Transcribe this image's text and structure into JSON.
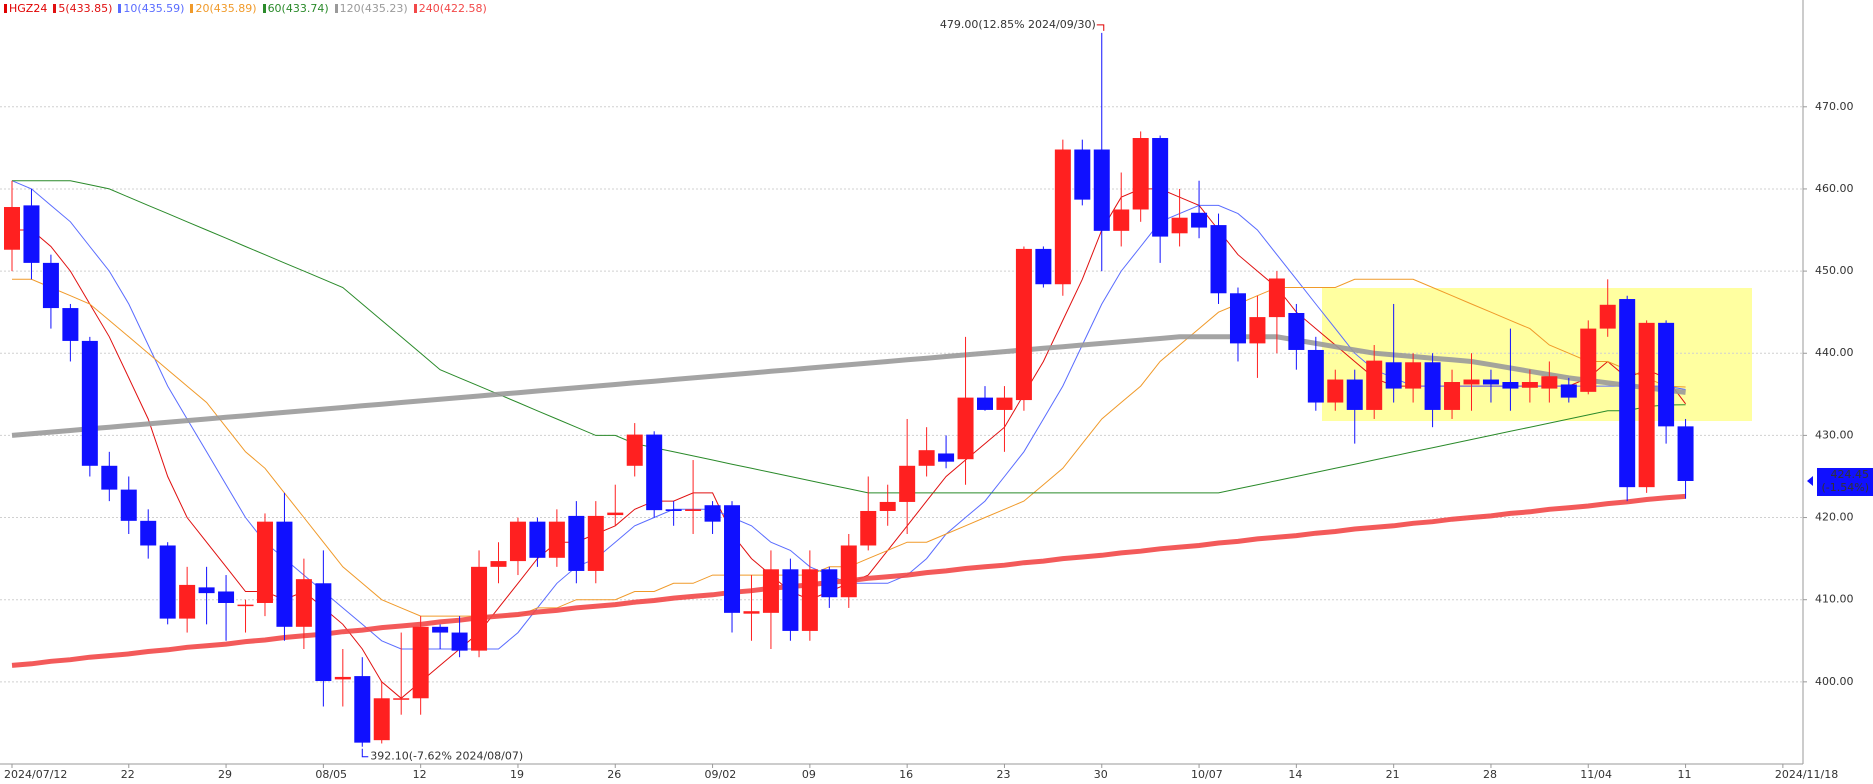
{
  "chart_data": {
    "type": "candlestick",
    "title": "HGZ24",
    "title_color": "#e00000",
    "up_color": "#ff2020",
    "down_color": "#1010ff",
    "grid": true,
    "ylim": [
      390,
      483
    ],
    "yticks": [
      {
        "value": 400,
        "label": "400.00"
      },
      {
        "value": 410,
        "label": "410.00"
      },
      {
        "value": 420,
        "label": "420.00"
      },
      {
        "value": 430,
        "label": "430.00"
      },
      {
        "value": 440,
        "label": "440.00"
      },
      {
        "value": 450,
        "label": "450.00"
      },
      {
        "value": 460,
        "label": "460.00"
      },
      {
        "value": 470,
        "label": "470.00"
      }
    ],
    "categories": [
      "2024/07/12",
      null,
      null,
      null,
      null,
      null,
      "22",
      null,
      null,
      null,
      null,
      "29",
      null,
      null,
      null,
      null,
      "08/05",
      null,
      null,
      null,
      null,
      "12",
      null,
      null,
      null,
      null,
      "19",
      null,
      null,
      null,
      null,
      "26",
      null,
      null,
      null,
      null,
      "09/02",
      null,
      null,
      null,
      null,
      "09",
      null,
      null,
      null,
      null,
      "16",
      null,
      null,
      null,
      null,
      "23",
      null,
      null,
      null,
      null,
      "30",
      null,
      null,
      null,
      null,
      "10/07",
      null,
      null,
      null,
      null,
      "14",
      null,
      null,
      null,
      null,
      "21",
      null,
      null,
      null,
      null,
      "28",
      null,
      null,
      null,
      null,
      "11/04",
      null,
      null,
      null,
      null,
      "11",
      null,
      null,
      null,
      null,
      "2024/11/18"
    ],
    "open": [
      452.6,
      458,
      451,
      445.5,
      441.5,
      426.3,
      423.4,
      419.6,
      416.6,
      407.7,
      411.5,
      411,
      409.4,
      409.6,
      419.5,
      406.7,
      412,
      400.3,
      400.7,
      392.9,
      398,
      398,
      406.7,
      406,
      403.8,
      414,
      414.7,
      419.5,
      415.1,
      420.2,
      413.5,
      420.3,
      426.3,
      430.1,
      421,
      420.8,
      421.5,
      421.5,
      408.3,
      408.4,
      413.7,
      406.2,
      413.7,
      410.3,
      416.6,
      420.8,
      421.9,
      426.3,
      427.8,
      427.1,
      434.6,
      433.1,
      434.3,
      452.7,
      448.4,
      464.8,
      464.8,
      454.9,
      457.5,
      466.2,
      454.6,
      457.1,
      455.6,
      447.3,
      441.2,
      444.4,
      444.9,
      440.4,
      434,
      436.8,
      433.1,
      438.9,
      435.7,
      438.9,
      433.1,
      436.2,
      436.8,
      436.5,
      435.8,
      435.7,
      436.2,
      435.3,
      443,
      446.6,
      423.7,
      443.7,
      431.1,
      null,
      null,
      null,
      null,
      null
    ],
    "high": [
      461,
      460,
      452,
      446,
      442,
      428,
      425,
      421,
      417,
      414,
      414,
      413,
      410,
      420.5,
      423,
      415,
      416,
      404,
      403,
      400,
      406,
      408,
      407,
      408,
      416,
      417,
      420,
      420,
      421,
      422,
      422,
      424,
      431.5,
      430.5,
      422,
      427,
      422,
      422,
      413,
      416,
      415,
      416,
      414,
      418,
      425,
      424,
      432,
      431,
      430,
      442,
      436,
      436,
      453,
      453,
      466,
      466,
      479,
      462,
      467,
      466.5,
      460,
      461,
      457,
      448,
      447,
      450,
      446,
      442,
      438,
      438,
      441,
      446,
      440,
      440,
      438,
      440,
      438,
      443,
      438,
      439,
      437,
      444,
      449,
      447,
      444,
      444,
      432,
      null,
      null,
      null,
      null,
      null
    ],
    "low": [
      450,
      449,
      443,
      439,
      425,
      422,
      418,
      415,
      407,
      406,
      407,
      405,
      406,
      408,
      405,
      404,
      397,
      397,
      392.1,
      392.5,
      396,
      396,
      404,
      403,
      403,
      412,
      413,
      414,
      414,
      412,
      412,
      419,
      425,
      420,
      419,
      418,
      418,
      406,
      405,
      404,
      405,
      405,
      409,
      409,
      416,
      419,
      418,
      425,
      426,
      424,
      433,
      428,
      433,
      448,
      447,
      458,
      450,
      453,
      456,
      451,
      453,
      454,
      446,
      439,
      437,
      440,
      438,
      433,
      433,
      429,
      432,
      434,
      434,
      431,
      432,
      433,
      434,
      433,
      434,
      434,
      434,
      435,
      442,
      422,
      423,
      429,
      422.3,
      null,
      null,
      null,
      null,
      null
    ],
    "close": [
      457.8,
      451,
      445.5,
      441.5,
      426.3,
      423.4,
      419.6,
      416.6,
      407.7,
      411.8,
      410.8,
      409.6,
      409.4,
      419.5,
      406.7,
      412.5,
      400.1,
      400.6,
      392.6,
      398,
      398,
      406.7,
      406,
      403.8,
      414,
      414.7,
      419.5,
      415.1,
      419.5,
      413.5,
      420.2,
      420.6,
      430.1,
      420.9,
      420.8,
      421,
      419.5,
      408.4,
      408.6,
      413.7,
      406.2,
      413.7,
      410.3,
      416.6,
      420.8,
      421.9,
      426.3,
      428.2,
      426.8,
      434.6,
      433.1,
      434.6,
      452.7,
      448.4,
      464.8,
      458.7,
      454.9,
      457.5,
      466.2,
      454.2,
      456.5,
      455.3,
      447.3,
      441.2,
      444.4,
      449.1,
      440.4,
      434,
      436.8,
      433.1,
      439.1,
      435.7,
      438.9,
      433.1,
      436.5,
      436.8,
      436.2,
      435.7,
      436.5,
      437.2,
      434.6,
      443,
      445.9,
      423.7,
      443.7,
      431.1,
      424.45,
      null,
      null,
      null,
      null,
      null
    ],
    "series": [
      {
        "name": "5(433.85)",
        "color": "#e01010",
        "width": 1,
        "values": [
          455,
          455,
          453,
          450,
          446,
          442,
          437,
          432,
          425,
          420,
          417,
          414,
          411,
          411,
          410,
          411,
          409,
          407,
          404,
          400,
          398,
          400,
          402,
          404,
          406,
          409,
          412,
          415,
          417,
          417,
          418,
          419,
          421,
          422,
          422,
          423,
          423,
          418,
          415,
          413,
          411,
          410,
          411,
          412,
          413,
          416,
          419,
          422,
          425,
          427,
          429,
          431,
          435,
          439,
          444,
          449,
          455,
          459,
          460,
          460,
          459,
          458,
          455,
          452,
          450,
          448,
          445,
          443,
          441,
          439,
          437,
          436,
          436,
          436,
          436,
          436,
          436,
          436,
          436,
          436,
          436,
          437,
          439,
          437,
          438,
          437,
          433.85,
          null,
          null,
          null,
          null,
          null
        ]
      },
      {
        "name": "10(435.59)",
        "color": "#5a6cff",
        "width": 1,
        "values": [
          461,
          460,
          458,
          456,
          453,
          450,
          446,
          441,
          436,
          432,
          428,
          424,
          420,
          417,
          415,
          413,
          411,
          409,
          407,
          405,
          404,
          404,
          404,
          404,
          404,
          404,
          406,
          409,
          412,
          414,
          415,
          417,
          419,
          420,
          421,
          421,
          421,
          420,
          419,
          417,
          416,
          414,
          413,
          412,
          412,
          412,
          413,
          415,
          418,
          420,
          422,
          425,
          428,
          432,
          436,
          441,
          446,
          450,
          453,
          456,
          457,
          458,
          458,
          457,
          455,
          452,
          449,
          446,
          443,
          440,
          438,
          437,
          436,
          436,
          436,
          436,
          436,
          436,
          436,
          436,
          436,
          436,
          436,
          436,
          436,
          436,
          435.59,
          null,
          null,
          null,
          null,
          null
        ]
      },
      {
        "name": "20(435.89)",
        "color": "#f09a2a",
        "width": 1,
        "values": [
          449,
          449,
          448,
          447,
          446,
          444,
          442,
          440,
          438,
          436,
          434,
          431,
          428,
          426,
          423,
          420,
          417,
          414,
          412,
          410,
          409,
          408,
          408,
          408,
          408,
          408,
          408,
          409,
          409,
          410,
          410,
          410,
          411,
          411,
          412,
          412,
          413,
          413,
          413,
          413,
          413,
          413,
          414,
          414,
          415,
          416,
          417,
          417,
          418,
          419,
          420,
          421,
          422,
          424,
          426,
          429,
          432,
          434,
          436,
          439,
          441,
          443,
          445,
          446,
          447,
          448,
          448,
          448,
          448,
          449,
          449,
          449,
          449,
          448,
          447,
          446,
          445,
          444,
          443,
          441,
          440,
          439,
          439,
          438,
          437,
          436,
          435.89,
          null,
          null,
          null,
          null,
          null
        ]
      },
      {
        "name": "60(433.74)",
        "color": "#2a8a2a",
        "width": 1,
        "values": [
          461,
          461,
          461,
          461,
          460.5,
          460,
          459,
          458,
          457,
          456,
          455,
          454,
          453,
          452,
          451,
          450,
          449,
          448,
          446,
          444,
          442,
          440,
          438,
          437,
          436,
          435,
          434,
          433,
          432,
          431,
          430,
          430,
          429,
          428.5,
          428,
          427.5,
          427,
          426.5,
          426,
          425.5,
          425,
          424.5,
          424,
          423.5,
          423,
          423,
          423,
          423,
          423,
          423,
          423,
          423,
          423,
          423,
          423,
          423,
          423,
          423,
          423,
          423,
          423,
          423,
          423,
          423.5,
          424,
          424.5,
          425,
          425.5,
          426,
          426.5,
          427,
          427.5,
          428,
          428.5,
          429,
          429.5,
          430,
          430.5,
          431,
          431.5,
          432,
          432.5,
          433,
          433,
          433.5,
          433.7,
          433.74,
          null,
          null,
          null,
          null,
          null
        ]
      },
      {
        "name": "120(435.23)",
        "color": "#9a9a9a",
        "width": 5,
        "values": [
          430.0,
          430.2,
          430.4,
          430.6,
          430.8,
          431.0,
          431.2,
          431.4,
          431.6,
          431.8,
          432.0,
          432.2,
          432.4,
          432.6,
          432.8,
          433.0,
          433.2,
          433.4,
          433.6,
          433.8,
          434.0,
          434.2,
          434.4,
          434.6,
          434.8,
          435.0,
          435.2,
          435.4,
          435.6,
          435.8,
          436.0,
          436.2,
          436.4,
          436.6,
          436.8,
          437.0,
          437.2,
          437.4,
          437.6,
          437.8,
          438.0,
          438.2,
          438.4,
          438.6,
          438.8,
          439.0,
          439.2,
          439.4,
          439.6,
          439.8,
          440.0,
          440.2,
          440.4,
          440.6,
          440.8,
          441.0,
          441.2,
          441.4,
          441.6,
          441.8,
          442.0,
          442.0,
          442.0,
          442.0,
          442.0,
          442.0,
          441.6,
          441.2,
          440.8,
          440.4,
          440.0,
          439.8,
          439.6,
          439.4,
          439.2,
          439.0,
          438.6,
          438.2,
          437.8,
          437.4,
          437.0,
          436.7,
          436.4,
          436.1,
          435.8,
          435.5,
          435.23,
          null,
          null,
          null,
          null,
          null
        ]
      },
      {
        "name": "240(422.58)",
        "color": "#f24848",
        "width": 5,
        "values": [
          402.0,
          402.2,
          402.5,
          402.7,
          403.0,
          403.2,
          403.4,
          403.7,
          403.9,
          404.2,
          404.4,
          404.6,
          404.9,
          405.1,
          405.4,
          405.6,
          405.8,
          406.1,
          406.3,
          406.6,
          406.8,
          407.0,
          407.3,
          407.5,
          407.8,
          408.0,
          408.2,
          408.5,
          408.7,
          409.0,
          409.2,
          409.4,
          409.7,
          409.9,
          410.2,
          410.4,
          410.6,
          410.9,
          411.1,
          411.4,
          411.6,
          411.8,
          412.1,
          412.3,
          412.6,
          412.8,
          413.0,
          413.3,
          413.5,
          413.8,
          414.0,
          414.2,
          414.5,
          414.7,
          415.0,
          415.2,
          415.4,
          415.7,
          415.9,
          416.2,
          416.4,
          416.6,
          416.9,
          417.1,
          417.4,
          417.6,
          417.8,
          418.1,
          418.3,
          418.6,
          418.8,
          419.0,
          419.3,
          419.5,
          419.8,
          420.0,
          420.2,
          420.5,
          420.7,
          421.0,
          421.2,
          421.4,
          421.7,
          421.9,
          422.2,
          422.4,
          422.58,
          null,
          null,
          null,
          null,
          null
        ]
      }
    ],
    "annotations": {
      "high_label": "479.00(12.85% 2024/09/30)",
      "low_label": "392.10(-7.62% 2024/08/07)",
      "last_price_label": "424.45",
      "last_change_label": "(-1.54%)"
    }
  }
}
